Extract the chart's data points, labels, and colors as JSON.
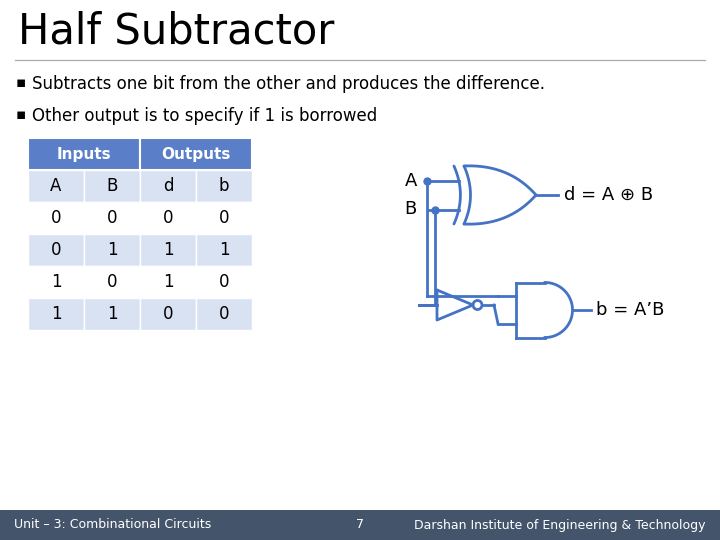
{
  "title": "Half Subtractor",
  "bullet1": "Subtracts one bit from the other and produces the difference.",
  "bullet2": "Other output is to specify if 1 is borrowed",
  "col_headers": [
    "A",
    "B",
    "d",
    "b"
  ],
  "table_data": [
    [
      0,
      0,
      0,
      0
    ],
    [
      0,
      1,
      1,
      1
    ],
    [
      1,
      0,
      1,
      0
    ],
    [
      1,
      1,
      0,
      0
    ]
  ],
  "header_bg": "#5b7ec9",
  "header_fg": "#ffffff",
  "row_bg_even": "#ffffff",
  "row_bg_odd": "#d9e2f3",
  "gate_color": "#4472C4",
  "text_color": "#000000",
  "bg_color": "#ffffff",
  "footer_bg": "#44546a",
  "footer_fg": "#ffffff",
  "footer_left": "Unit – 3: Combinational Circuits",
  "footer_center": "7",
  "footer_right": "Darshan Institute of Engineering & Technology",
  "xor_label": "d = A ⊕ B",
  "and_label": "b = A’B"
}
